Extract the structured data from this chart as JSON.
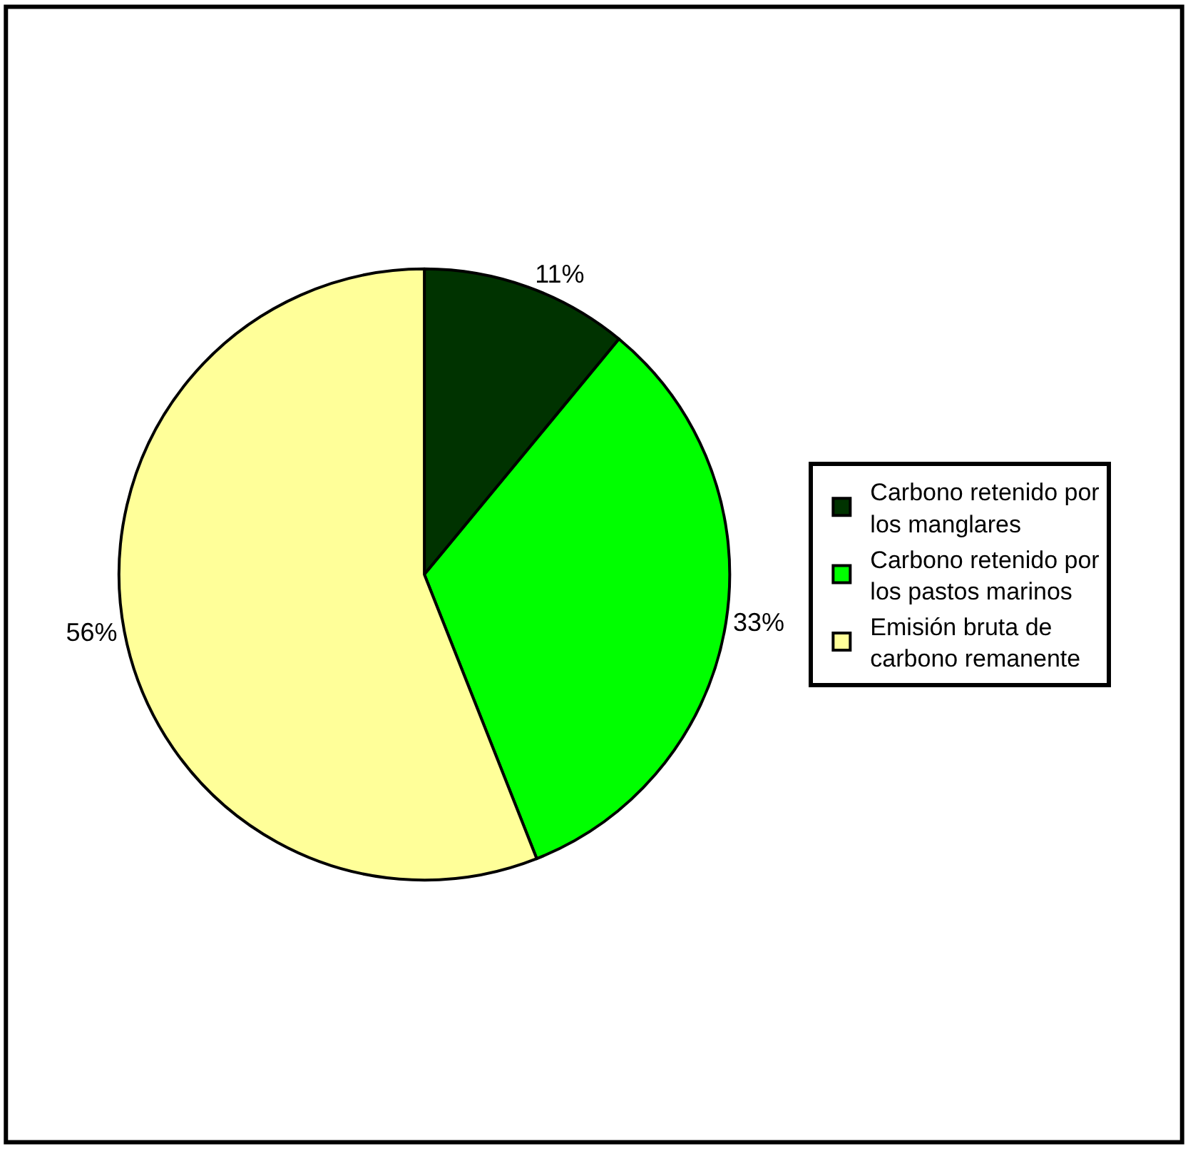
{
  "chart_data": {
    "type": "pie",
    "categories": [
      "Carbono retenido por los manglares",
      "Carbono retenido por los pastos marinos",
      "Emisión bruta de carbono remanente"
    ],
    "values": [
      11,
      33,
      56
    ],
    "value_labels": [
      "11%",
      "33%",
      "56%"
    ],
    "colors": [
      "#003300",
      "#00ff00",
      "#ffff99"
    ],
    "legend": "right"
  }
}
